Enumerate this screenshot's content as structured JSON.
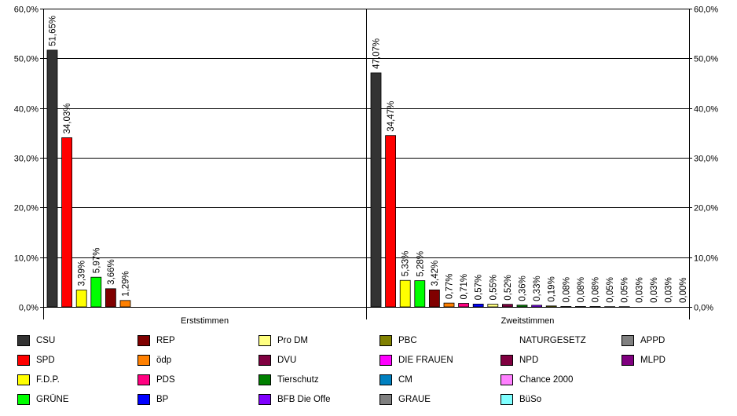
{
  "chart_data": {
    "type": "bar",
    "ylim": [
      0,
      60
    ],
    "yticks": [
      "0,0%",
      "10,0%",
      "20,0%",
      "30,0%",
      "40,0%",
      "50,0%",
      "60,0%"
    ],
    "grid": true,
    "legend_position": "bottom",
    "groups": [
      {
        "label": "Erststimmen",
        "bars": [
          {
            "party": "CSU",
            "value": 51.65,
            "label": "51,65%"
          },
          {
            "party": "SPD",
            "value": 34.03,
            "label": "34,03%"
          },
          {
            "party": "F.D.P.",
            "value": 3.39,
            "label": "3,39%"
          },
          {
            "party": "GRÜNE",
            "value": 5.97,
            "label": "5,97%"
          },
          {
            "party": "REP",
            "value": 3.66,
            "label": "3,66%"
          },
          {
            "party": "ödp",
            "value": 1.29,
            "label": "1,29%"
          }
        ]
      },
      {
        "label": "Zweitstimmen",
        "bars": [
          {
            "party": "CSU",
            "value": 47.07,
            "label": "47,07%"
          },
          {
            "party": "SPD",
            "value": 34.47,
            "label": "34,47%"
          },
          {
            "party": "F.D.P.",
            "value": 5.33,
            "label": "5,33%"
          },
          {
            "party": "GRÜNE",
            "value": 5.28,
            "label": "5,28%"
          },
          {
            "party": "REP",
            "value": 3.42,
            "label": "3,42%"
          },
          {
            "party": "ödp",
            "value": 0.77,
            "label": "0,77%"
          },
          {
            "party": "PDS",
            "value": 0.71,
            "label": "0,71%"
          },
          {
            "party": "BP",
            "value": 0.57,
            "label": "0,57%"
          },
          {
            "party": "Pro DM",
            "value": 0.55,
            "label": "0,55%"
          },
          {
            "party": "DVU",
            "value": 0.52,
            "label": "0,52%"
          },
          {
            "party": "Tierschutz",
            "value": 0.36,
            "label": "0,36%"
          },
          {
            "party": "BFB Die Offe",
            "value": 0.33,
            "label": "0,33%"
          },
          {
            "party": "PBC",
            "value": 0.19,
            "label": "0,19%"
          },
          {
            "party": "DIE FRAUEN",
            "value": 0.08,
            "label": "0,08%"
          },
          {
            "party": "CM",
            "value": 0.08,
            "label": "0,08%"
          },
          {
            "party": "GRAUE",
            "value": 0.08,
            "label": "0,08%"
          },
          {
            "party": "NATURGESETZ",
            "value": 0.05,
            "label": "0,05%"
          },
          {
            "party": "NPD",
            "value": 0.05,
            "label": "0,05%"
          },
          {
            "party": "Chance 2000",
            "value": 0.03,
            "label": "0,03%"
          },
          {
            "party": "BüSo",
            "value": 0.03,
            "label": "0,03%"
          },
          {
            "party": "APPD",
            "value": 0.03,
            "label": "0,03%"
          },
          {
            "party": "MLPD",
            "value": 0.0,
            "label": "0,00%"
          }
        ]
      }
    ],
    "legend": [
      {
        "name": "CSU",
        "color": "#333333"
      },
      {
        "name": "SPD",
        "color": "#ff0000"
      },
      {
        "name": "F.D.P.",
        "color": "#ffff00"
      },
      {
        "name": "GRÜNE",
        "color": "#00ff00"
      },
      {
        "name": "REP",
        "color": "#800000"
      },
      {
        "name": "ödp",
        "color": "#ff8000"
      },
      {
        "name": "PDS",
        "color": "#ff0080"
      },
      {
        "name": "BP",
        "color": "#0000ff"
      },
      {
        "name": "Pro DM",
        "color": "#ffff80"
      },
      {
        "name": "DVU",
        "color": "#800040"
      },
      {
        "name": "Tierschutz",
        "color": "#008000"
      },
      {
        "name": "BFB Die Offe",
        "color": "#8000ff"
      },
      {
        "name": "PBC",
        "color": "#808000"
      },
      {
        "name": "DIE FRAUEN",
        "color": "#ff00ff"
      },
      {
        "name": "CM",
        "color": "#0080c0"
      },
      {
        "name": "GRAUE",
        "color": "#808080"
      },
      {
        "name": "NATURGESETZ",
        "color": "#ffffff"
      },
      {
        "name": "NPD",
        "color": "#800040"
      },
      {
        "name": "Chance 2000",
        "color": "#ff80ff"
      },
      {
        "name": "BüSo",
        "color": "#80ffff"
      },
      {
        "name": "APPD",
        "color": "#808080"
      },
      {
        "name": "MLPD",
        "color": "#800080"
      }
    ]
  }
}
